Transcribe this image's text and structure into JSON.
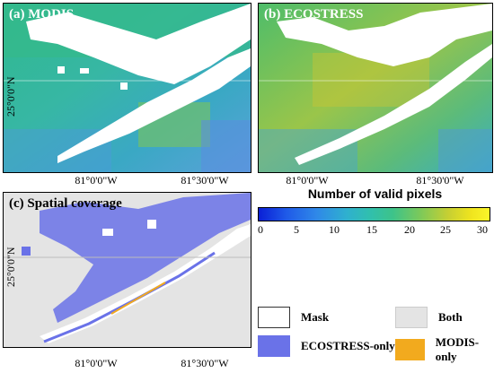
{
  "panels": {
    "a": {
      "label": "(a) MODIS"
    },
    "b": {
      "label": "(b) ECOSTRESS"
    },
    "c": {
      "label": "(c) Spatial coverage"
    }
  },
  "axes": {
    "x_ticks": [
      "81°0'0\"W",
      "81°30'0\"W"
    ],
    "y_tick": "25°0'0\"N"
  },
  "colorbar": {
    "title": "Number of valid pixels",
    "ticks": [
      "0",
      "5",
      "10",
      "15",
      "20",
      "25",
      "30"
    ],
    "colors": [
      "#0a1fd6",
      "#2f88e8",
      "#30bfae",
      "#7cc95a",
      "#fbf62a"
    ]
  },
  "legend": {
    "items": [
      {
        "label": "Mask",
        "color": "#ffffff"
      },
      {
        "label": "Both",
        "color": "#e4e4e4"
      },
      {
        "label": "ECOSTRESS-only",
        "color": "#6a72e8"
      },
      {
        "label": "MODIS-only",
        "color": "#f2aa1e"
      }
    ]
  }
}
